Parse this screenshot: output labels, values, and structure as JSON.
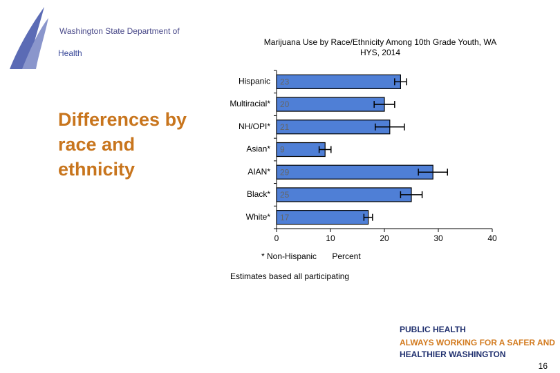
{
  "slide": {
    "logo_top": "Washington State Department of",
    "logo_main": "Health",
    "heading": "Differences by race and ethnicity",
    "footer_main": "PUBLIC HEALTH",
    "footer_tag": "ALWAYS WORKING FOR A SAFER AND",
    "footer_bottom": "HEALTHIER WASHINGTON",
    "page_number": "16"
  },
  "chart_data": {
    "type": "bar",
    "orientation": "horizontal",
    "title": "Marijuana Use by Race/Ethnicity Among 10th Grade Youth, WA HYS, 2014",
    "categories": [
      "Hispanic",
      "Multiracial*",
      "NH/OPI*",
      "Asian*",
      "AIAN*",
      "Black*",
      "White*"
    ],
    "values": [
      23,
      20,
      21,
      9,
      29,
      25,
      17
    ],
    "errors": [
      1.1,
      1.9,
      2.7,
      1.1,
      2.7,
      2.0,
      0.8
    ],
    "color": "#4f7fd6",
    "xlim": [
      0,
      40
    ],
    "xticks": [
      0,
      10,
      20,
      30,
      40
    ],
    "x_label": "Percent",
    "footnote": "* Non-Hispanic",
    "note": "Estimates based all participating"
  }
}
